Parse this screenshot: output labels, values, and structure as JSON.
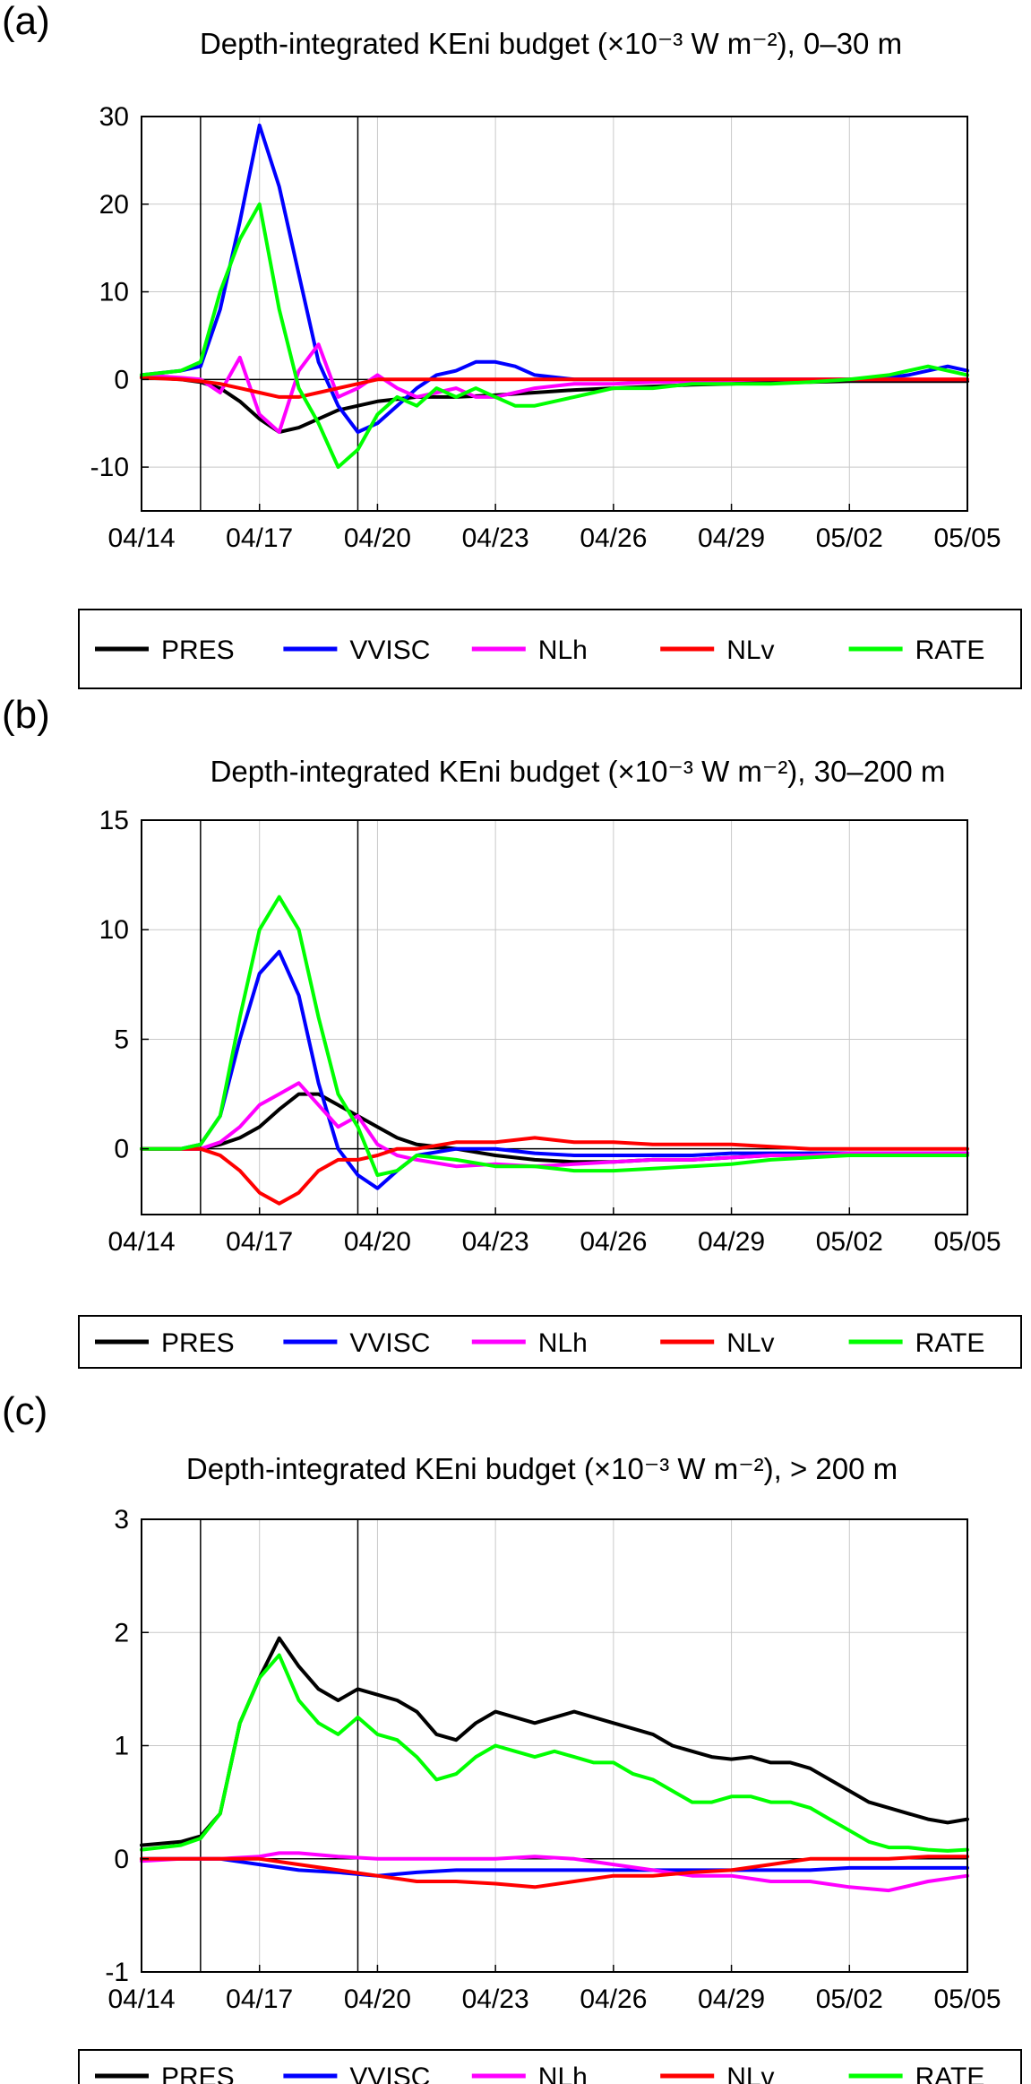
{
  "x_tick_labels": [
    "04/14",
    "04/17",
    "04/20",
    "04/23",
    "04/26",
    "04/29",
    "05/02",
    "05/05"
  ],
  "legend_labels": [
    "PRES",
    "VVISC",
    "NLh",
    "NLv",
    "RATE"
  ],
  "series_colors": {
    "PRES": "#000000",
    "VVISC": "#0000ff",
    "NLh": "#ff00ff",
    "NLv": "#ff0000",
    "RATE": "#00ff00"
  },
  "chart_data": [
    {
      "panel_label": "(a)",
      "type": "line",
      "title": "Depth-integrated KEni budget (×10⁻³ W m⁻²), 0–30 m",
      "xlabel": "",
      "ylabel": "",
      "xlim": [
        0,
        21
      ],
      "ylim": [
        -15,
        30
      ],
      "yticks": [
        -10,
        0,
        10,
        20,
        30
      ],
      "ytick_labels": [
        "-10",
        "0",
        "10",
        "20",
        "30"
      ],
      "vlines": [
        1.5,
        5.5
      ],
      "series": [
        {
          "name": "PRES",
          "x": [
            0,
            1,
            1.5,
            2,
            2.5,
            3,
            3.5,
            4,
            4.5,
            5,
            5.5,
            6,
            7,
            8,
            9,
            10,
            11,
            12,
            13,
            14,
            15,
            16,
            17,
            18,
            19,
            20,
            21
          ],
          "values": [
            0.3,
            0,
            -0.3,
            -1,
            -2.5,
            -4.5,
            -6,
            -5.5,
            -4.5,
            -3.5,
            -3,
            -2.5,
            -2,
            -2,
            -1.8,
            -1.5,
            -1.2,
            -1,
            -0.8,
            -0.6,
            -0.5,
            -0.3,
            -0.3,
            -0.2,
            -0.2,
            -0.2,
            -0.2
          ]
        },
        {
          "name": "VVISC",
          "x": [
            0,
            1,
            1.5,
            2,
            2.5,
            3,
            3.5,
            4,
            4.5,
            5,
            5.5,
            6,
            6.5,
            7,
            7.5,
            8,
            8.5,
            9,
            9.5,
            10,
            11,
            12,
            13,
            14,
            15,
            16,
            17,
            18,
            19,
            19.5,
            20,
            20.5,
            21
          ],
          "values": [
            0.5,
            1,
            1.5,
            8,
            18,
            29,
            22,
            12,
            2,
            -3,
            -6,
            -5,
            -3,
            -1,
            0.5,
            1,
            2,
            2,
            1.5,
            0.5,
            0,
            0,
            0,
            0,
            0,
            0,
            0,
            0,
            0.2,
            0.5,
            1,
            1.5,
            1
          ]
        },
        {
          "name": "NLh",
          "x": [
            0,
            1,
            1.5,
            2,
            2.5,
            3,
            3.5,
            4,
            4.5,
            5,
            5.5,
            6,
            6.5,
            7,
            7.5,
            8,
            8.5,
            9,
            9.5,
            10,
            11,
            12,
            13,
            14,
            15,
            16,
            17,
            18,
            19,
            20,
            21
          ],
          "values": [
            0.5,
            0.2,
            0,
            -1.5,
            2.5,
            -4,
            -6,
            1,
            4,
            -2,
            -1,
            0.5,
            -1,
            -2,
            -1.5,
            -1,
            -2,
            -2,
            -1.5,
            -1,
            -0.5,
            -0.5,
            -0.3,
            -0.2,
            -0.1,
            0,
            0,
            0,
            0,
            0,
            0
          ]
        },
        {
          "name": "NLv",
          "x": [
            0,
            1,
            1.5,
            2,
            2.5,
            3,
            3.5,
            4,
            4.5,
            5,
            5.5,
            6,
            7,
            8,
            9,
            10,
            11,
            12,
            13,
            14,
            15,
            16,
            17,
            18,
            19,
            20,
            21
          ],
          "values": [
            0.2,
            0,
            -0.2,
            -0.5,
            -1,
            -1.5,
            -2,
            -2,
            -1.5,
            -1,
            -0.5,
            0,
            0,
            0,
            0,
            0,
            0,
            0,
            0,
            0,
            0,
            0,
            0,
            0,
            0,
            0,
            0
          ]
        },
        {
          "name": "RATE",
          "x": [
            0,
            1,
            1.5,
            2,
            2.5,
            3,
            3.5,
            4,
            4.5,
            5,
            5.5,
            6,
            6.5,
            7,
            7.5,
            8,
            8.5,
            9,
            9.5,
            10,
            10.5,
            11,
            11.5,
            12,
            13,
            14,
            15,
            16,
            17,
            18,
            19,
            19.5,
            20,
            20.5,
            21
          ],
          "values": [
            0.5,
            1,
            2,
            10,
            16,
            20,
            8,
            -1,
            -5,
            -10,
            -8,
            -4,
            -2,
            -3,
            -1,
            -2,
            -1,
            -2,
            -3,
            -3,
            -2.5,
            -2,
            -1.5,
            -1,
            -1,
            -0.5,
            -0.5,
            -0.5,
            -0.3,
            0,
            0.5,
            1,
            1.5,
            1,
            0.5
          ]
        }
      ]
    },
    {
      "panel_label": "(b)",
      "type": "line",
      "title": "Depth-integrated KEni budget (×10⁻³ W m⁻²), 30–200 m",
      "xlabel": "",
      "ylabel": "",
      "xlim": [
        0,
        21
      ],
      "ylim": [
        -3,
        15
      ],
      "yticks": [
        0,
        5,
        10,
        15
      ],
      "ytick_labels": [
        "0",
        "5",
        "10",
        "15"
      ],
      "vlines": [
        1.5,
        5.5
      ],
      "series": [
        {
          "name": "PRES",
          "x": [
            0,
            1,
            1.5,
            2,
            2.5,
            3,
            3.5,
            4,
            4.5,
            5,
            5.5,
            6,
            6.5,
            7,
            8,
            9,
            10,
            11,
            12,
            13,
            14,
            15,
            16,
            17,
            18,
            19,
            20,
            21
          ],
          "values": [
            0,
            0,
            0,
            0.2,
            0.5,
            1,
            1.8,
            2.5,
            2.5,
            2,
            1.5,
            1,
            0.5,
            0.2,
            0,
            -0.3,
            -0.5,
            -0.6,
            -0.6,
            -0.5,
            -0.5,
            -0.4,
            -0.3,
            -0.2,
            -0.2,
            -0.2,
            -0.2,
            -0.2
          ]
        },
        {
          "name": "VVISC",
          "x": [
            0,
            1,
            1.5,
            2,
            2.5,
            3,
            3.5,
            4,
            4.5,
            5,
            5.5,
            6,
            6.5,
            7,
            8,
            9,
            10,
            11,
            12,
            13,
            14,
            15,
            16,
            17,
            18,
            19,
            20,
            21
          ],
          "values": [
            0,
            0,
            0.2,
            1.5,
            5,
            8,
            9,
            7,
            3,
            0,
            -1.2,
            -1.8,
            -1,
            -0.3,
            0,
            0,
            -0.2,
            -0.3,
            -0.3,
            -0.3,
            -0.3,
            -0.2,
            -0.2,
            -0.2,
            -0.2,
            -0.2,
            -0.2,
            -0.2
          ]
        },
        {
          "name": "NLh",
          "x": [
            0,
            1,
            1.5,
            2,
            2.5,
            3,
            3.5,
            4,
            4.5,
            5,
            5.5,
            6,
            6.5,
            7,
            8,
            9,
            10,
            11,
            12,
            13,
            14,
            15,
            16,
            17,
            18,
            19,
            20,
            21
          ],
          "values": [
            0,
            0,
            0,
            0.3,
            1,
            2,
            2.5,
            3,
            2,
            1,
            1.5,
            0.2,
            -0.3,
            -0.5,
            -0.8,
            -0.7,
            -0.8,
            -0.7,
            -0.6,
            -0.5,
            -0.5,
            -0.4,
            -0.3,
            -0.3,
            -0.2,
            -0.2,
            -0.2,
            -0.2
          ]
        },
        {
          "name": "NLv",
          "x": [
            0,
            1,
            1.5,
            2,
            2.5,
            3,
            3.5,
            4,
            4.5,
            5,
            5.5,
            6,
            6.5,
            7,
            8,
            9,
            10,
            11,
            12,
            13,
            14,
            15,
            16,
            17,
            18,
            19,
            20,
            21
          ],
          "values": [
            0,
            0,
            0,
            -0.3,
            -1,
            -2,
            -2.5,
            -2,
            -1,
            -0.5,
            -0.5,
            -0.3,
            0,
            0,
            0.3,
            0.3,
            0.5,
            0.3,
            0.3,
            0.2,
            0.2,
            0.2,
            0.1,
            0,
            0,
            0,
            0,
            0
          ]
        },
        {
          "name": "RATE",
          "x": [
            0,
            1,
            1.5,
            2,
            2.5,
            3,
            3.5,
            4,
            4.5,
            5,
            5.5,
            6,
            6.5,
            7,
            8,
            9,
            10,
            11,
            12,
            13,
            14,
            15,
            16,
            17,
            18,
            19,
            20,
            21
          ],
          "values": [
            0,
            0,
            0.2,
            1.5,
            6,
            10,
            11.5,
            10,
            6,
            2.5,
            1,
            -1.2,
            -1,
            -0.3,
            -0.5,
            -0.8,
            -0.8,
            -1,
            -1,
            -0.9,
            -0.8,
            -0.7,
            -0.5,
            -0.4,
            -0.3,
            -0.3,
            -0.3,
            -0.3
          ]
        }
      ]
    },
    {
      "panel_label": "(c)",
      "type": "line",
      "title": "Depth-integrated KEni budget (×10⁻³ W m⁻²), > 200 m",
      "xlabel": "",
      "ylabel": "",
      "xlim": [
        0,
        21
      ],
      "ylim": [
        -1,
        3
      ],
      "yticks": [
        -1,
        0,
        1,
        2,
        3
      ],
      "ytick_labels": [
        "-1",
        "0",
        "1",
        "2",
        "3"
      ],
      "vlines": [
        1.5,
        5.5
      ],
      "series": [
        {
          "name": "PRES",
          "x": [
            0,
            1,
            1.5,
            2,
            2.5,
            3,
            3.5,
            4,
            4.5,
            5,
            5.5,
            6,
            6.5,
            7,
            7.5,
            8,
            8.5,
            9,
            9.5,
            10,
            10.5,
            11,
            11.5,
            12,
            12.5,
            13,
            13.5,
            14,
            14.5,
            15,
            15.5,
            16,
            16.5,
            17,
            17.5,
            18,
            18.5,
            19,
            19.5,
            20,
            20.5,
            21
          ],
          "values": [
            0.12,
            0.15,
            0.2,
            0.4,
            1.2,
            1.6,
            1.95,
            1.7,
            1.5,
            1.4,
            1.5,
            1.45,
            1.4,
            1.3,
            1.1,
            1.05,
            1.2,
            1.3,
            1.25,
            1.2,
            1.25,
            1.3,
            1.25,
            1.2,
            1.15,
            1.1,
            1.0,
            0.95,
            0.9,
            0.88,
            0.9,
            0.85,
            0.85,
            0.8,
            0.7,
            0.6,
            0.5,
            0.45,
            0.4,
            0.35,
            0.32,
            0.35
          ]
        },
        {
          "name": "VVISC",
          "x": [
            0,
            1,
            2,
            3,
            4,
            5,
            6,
            7,
            8,
            9,
            10,
            11,
            12,
            13,
            14,
            15,
            16,
            17,
            18,
            19,
            20,
            21
          ],
          "values": [
            0,
            0,
            0,
            -0.05,
            -0.1,
            -0.12,
            -0.15,
            -0.12,
            -0.1,
            -0.1,
            -0.1,
            -0.1,
            -0.1,
            -0.1,
            -0.1,
            -0.1,
            -0.1,
            -0.1,
            -0.08,
            -0.08,
            -0.08,
            -0.08
          ]
        },
        {
          "name": "NLh",
          "x": [
            0,
            1,
            2,
            3,
            3.5,
            4,
            5,
            6,
            7,
            8,
            9,
            10,
            11,
            12,
            13,
            14,
            15,
            16,
            17,
            18,
            19,
            20,
            21
          ],
          "values": [
            -0.02,
            0,
            0,
            0.02,
            0.05,
            0.05,
            0.02,
            0,
            0,
            0,
            0,
            0.02,
            0,
            -0.05,
            -0.1,
            -0.15,
            -0.15,
            -0.2,
            -0.2,
            -0.25,
            -0.28,
            -0.2,
            -0.15
          ]
        },
        {
          "name": "NLv",
          "x": [
            0,
            1,
            2,
            3,
            4,
            5,
            6,
            7,
            8,
            9,
            10,
            11,
            12,
            13,
            14,
            15,
            16,
            17,
            18,
            19,
            20,
            21
          ],
          "values": [
            0,
            0,
            0,
            0,
            -0.05,
            -0.1,
            -0.15,
            -0.2,
            -0.2,
            -0.22,
            -0.25,
            -0.2,
            -0.15,
            -0.15,
            -0.12,
            -0.1,
            -0.05,
            0,
            0,
            0,
            0.02,
            0.02
          ]
        },
        {
          "name": "RATE",
          "x": [
            0,
            1,
            1.5,
            2,
            2.5,
            3,
            3.5,
            4,
            4.5,
            5,
            5.5,
            6,
            6.5,
            7,
            7.5,
            8,
            8.5,
            9,
            9.5,
            10,
            10.5,
            11,
            11.5,
            12,
            12.5,
            13,
            13.5,
            14,
            14.5,
            15,
            15.5,
            16,
            16.5,
            17,
            17.5,
            18,
            18.5,
            19,
            19.5,
            20,
            20.5,
            21
          ],
          "values": [
            0.08,
            0.12,
            0.18,
            0.4,
            1.2,
            1.6,
            1.8,
            1.4,
            1.2,
            1.1,
            1.25,
            1.1,
            1.05,
            0.9,
            0.7,
            0.75,
            0.9,
            1.0,
            0.95,
            0.9,
            0.95,
            0.9,
            0.85,
            0.85,
            0.75,
            0.7,
            0.6,
            0.5,
            0.5,
            0.55,
            0.55,
            0.5,
            0.5,
            0.45,
            0.35,
            0.25,
            0.15,
            0.1,
            0.1,
            0.08,
            0.07,
            0.08
          ]
        }
      ]
    }
  ]
}
